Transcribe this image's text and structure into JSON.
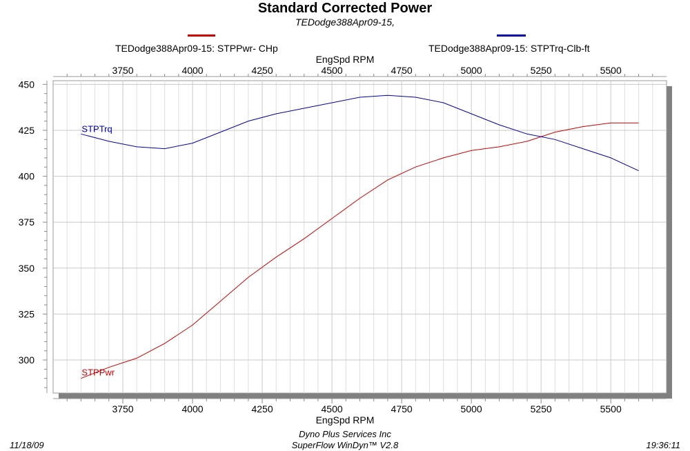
{
  "header": {
    "title": "Standard Corrected Power",
    "subtitle": "TEDodge388Apr09-15,"
  },
  "legend": [
    {
      "label": "TEDodge388Apr09-15: STPPwr- CHp",
      "color": "#cc0000"
    },
    {
      "label": "TEDodge388Apr09-15: STPTrq-Clb-ft",
      "color": "#0000aa"
    }
  ],
  "footer": {
    "date": "11/18/09",
    "company": "Dyno Plus Services Inc",
    "software": "SuperFlow WinDyn™ V2.8",
    "time": "19:36:11"
  },
  "chart_data": {
    "type": "line",
    "title": "Standard Corrected Power",
    "xlabel": "EngSpd  RPM",
    "x_ticks": [
      3750,
      4000,
      4250,
      4500,
      4750,
      5000,
      5250,
      5500
    ],
    "y_ticks": [
      300,
      325,
      350,
      375,
      400,
      425,
      450
    ],
    "xlim": [
      3500,
      5700
    ],
    "ylim": [
      282,
      452
    ],
    "grid": true,
    "legend_position": "top",
    "series": [
      {
        "name": "STPPwr",
        "legend_name": "TEDodge388Apr09-15: STPPwr- CHp",
        "color": "#cc0000",
        "x": [
          3600,
          3700,
          3800,
          3900,
          4000,
          4100,
          4200,
          4300,
          4400,
          4500,
          4600,
          4700,
          4800,
          4900,
          5000,
          5100,
          5200,
          5300,
          5400,
          5500,
          5600
        ],
        "y": [
          290,
          296,
          301,
          309,
          319,
          332,
          345,
          356,
          366,
          377,
          388,
          398,
          405,
          410,
          414,
          416,
          419,
          424,
          427,
          429,
          429
        ]
      },
      {
        "name": "STPTrq",
        "legend_name": "TEDodge388Apr09-15: STPTrq-Clb-ft",
        "color": "#0000aa",
        "x": [
          3600,
          3700,
          3800,
          3900,
          4000,
          4100,
          4200,
          4300,
          4400,
          4500,
          4600,
          4700,
          4800,
          4900,
          5000,
          5100,
          5200,
          5300,
          5400,
          5500,
          5600
        ],
        "y": [
          423,
          419,
          416,
          415,
          418,
          424,
          430,
          434,
          437,
          440,
          443,
          444,
          443,
          440,
          434,
          428,
          423,
          420,
          415,
          410,
          403
        ]
      }
    ]
  }
}
